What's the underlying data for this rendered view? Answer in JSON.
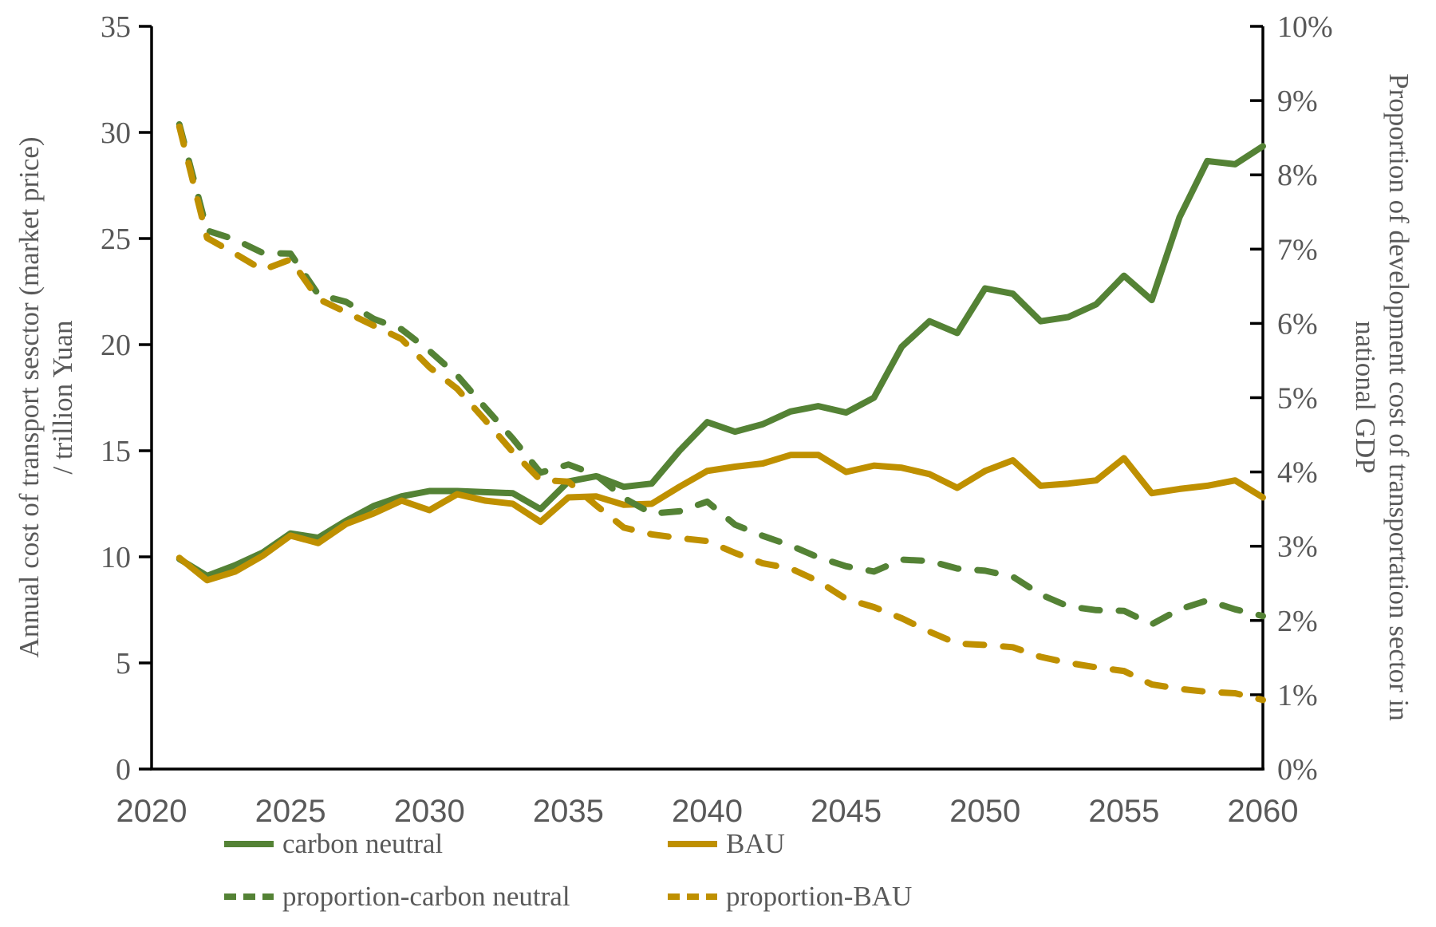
{
  "figure": {
    "left_axis_title_line1": "Annual cost of transport sesctor (market price)",
    "left_axis_title_line2": "/ trillion Yuan",
    "right_axis_title_line1": "Proportion of development cost of transportation sector in",
    "right_axis_title_line2": "national GDP"
  },
  "colors": {
    "green": "#548235",
    "gold": "#BF9000",
    "axis_line": "#000000",
    "tick_label": "#595959"
  },
  "chart_data": {
    "type": "line",
    "grid": false,
    "legend_position": "bottom",
    "xlim": [
      2020,
      2060
    ],
    "ylim": [
      0,
      35
    ],
    "y2lim": [
      0,
      10
    ],
    "ylabel": "Annual cost of transport sesctor (market price) / trillion Yuan",
    "y2label": "Proportion of development cost of transportation sector in national GDP",
    "x_tick_values": [
      2020,
      2025,
      2030,
      2035,
      2040,
      2045,
      2050,
      2055,
      2060
    ],
    "x_tick_labels": [
      "2020",
      "2025",
      "2030",
      "2035",
      "2040",
      "2045",
      "2050",
      "2055",
      "2060"
    ],
    "left_tick_values": [
      0,
      5,
      10,
      15,
      20,
      25,
      30,
      35
    ],
    "left_tick_labels": [
      "0",
      "5",
      "10",
      "15",
      "20",
      "25",
      "30",
      "35"
    ],
    "right_tick_values": [
      0,
      1,
      2,
      3,
      4,
      5,
      6,
      7,
      8,
      9,
      10
    ],
    "right_tick_labels": [
      "0%",
      "1%",
      "2%",
      "3%",
      "4%",
      "5%",
      "6%",
      "7%",
      "8%",
      "9%",
      "10%"
    ],
    "x": [
      2021,
      2022,
      2023,
      2024,
      2025,
      2026,
      2027,
      2028,
      2029,
      2030,
      2031,
      2032,
      2033,
      2034,
      2035,
      2036,
      2037,
      2038,
      2039,
      2040,
      2041,
      2042,
      2043,
      2044,
      2045,
      2046,
      2047,
      2048,
      2049,
      2050,
      2051,
      2052,
      2053,
      2054,
      2055,
      2056,
      2057,
      2058,
      2059,
      2060
    ],
    "series": [
      {
        "id": "carbon-neutral",
        "name": "carbon neutral",
        "axis": "left",
        "style": "solid",
        "color": "#548235",
        "unit": "trillion Yuan",
        "values": [
          9.9,
          9.1,
          9.6,
          10.2,
          11.1,
          10.9,
          11.7,
          12.4,
          12.85,
          13.1,
          13.1,
          13.05,
          13.0,
          12.25,
          13.55,
          13.8,
          13.3,
          13.45,
          15.0,
          16.35,
          15.9,
          16.25,
          16.85,
          17.1,
          16.8,
          17.5,
          19.9,
          21.1,
          20.55,
          22.65,
          22.4,
          21.1,
          21.3,
          21.9,
          23.25,
          22.1,
          26.0,
          28.65,
          28.5,
          29.35
        ]
      },
      {
        "id": "bau",
        "name": "BAU",
        "axis": "left",
        "style": "solid",
        "color": "#BF9000",
        "unit": "trillion Yuan",
        "values": [
          9.95,
          8.9,
          9.3,
          10.05,
          11.0,
          10.65,
          11.55,
          12.05,
          12.65,
          12.2,
          12.95,
          12.65,
          12.5,
          11.65,
          12.8,
          12.85,
          12.45,
          12.5,
          13.3,
          14.05,
          14.25,
          14.4,
          14.8,
          14.8,
          14.0,
          14.3,
          14.2,
          13.9,
          13.25,
          14.05,
          14.55,
          13.35,
          13.45,
          13.6,
          14.65,
          13.0,
          13.2,
          13.35,
          13.6,
          12.8
        ]
      },
      {
        "id": "proportion-carbon-neutral",
        "name": "proportion-carbon neutral",
        "axis": "right",
        "style": "dashed",
        "color": "#548235",
        "unit": "%",
        "values": [
          8.68,
          7.25,
          7.13,
          6.95,
          6.94,
          6.39,
          6.29,
          6.06,
          5.92,
          5.63,
          5.3,
          4.87,
          4.45,
          3.99,
          4.1,
          3.96,
          3.65,
          3.44,
          3.47,
          3.6,
          3.29,
          3.14,
          3.01,
          2.85,
          2.73,
          2.66,
          2.82,
          2.8,
          2.7,
          2.67,
          2.59,
          2.35,
          2.19,
          2.14,
          2.13,
          1.95,
          2.15,
          2.27,
          2.15,
          2.06
        ]
      },
      {
        "id": "proportion-bau",
        "name": "proportion-BAU",
        "axis": "right",
        "style": "dashed",
        "color": "#BF9000",
        "unit": "%",
        "values": [
          8.65,
          7.15,
          6.94,
          6.72,
          6.86,
          6.33,
          6.15,
          5.97,
          5.79,
          5.41,
          5.12,
          4.7,
          4.27,
          3.89,
          3.87,
          3.55,
          3.25,
          3.16,
          3.11,
          3.07,
          2.91,
          2.77,
          2.7,
          2.53,
          2.29,
          2.18,
          2.03,
          1.85,
          1.69,
          1.67,
          1.64,
          1.51,
          1.43,
          1.37,
          1.32,
          1.14,
          1.08,
          1.04,
          1.02,
          0.93
        ]
      }
    ]
  }
}
